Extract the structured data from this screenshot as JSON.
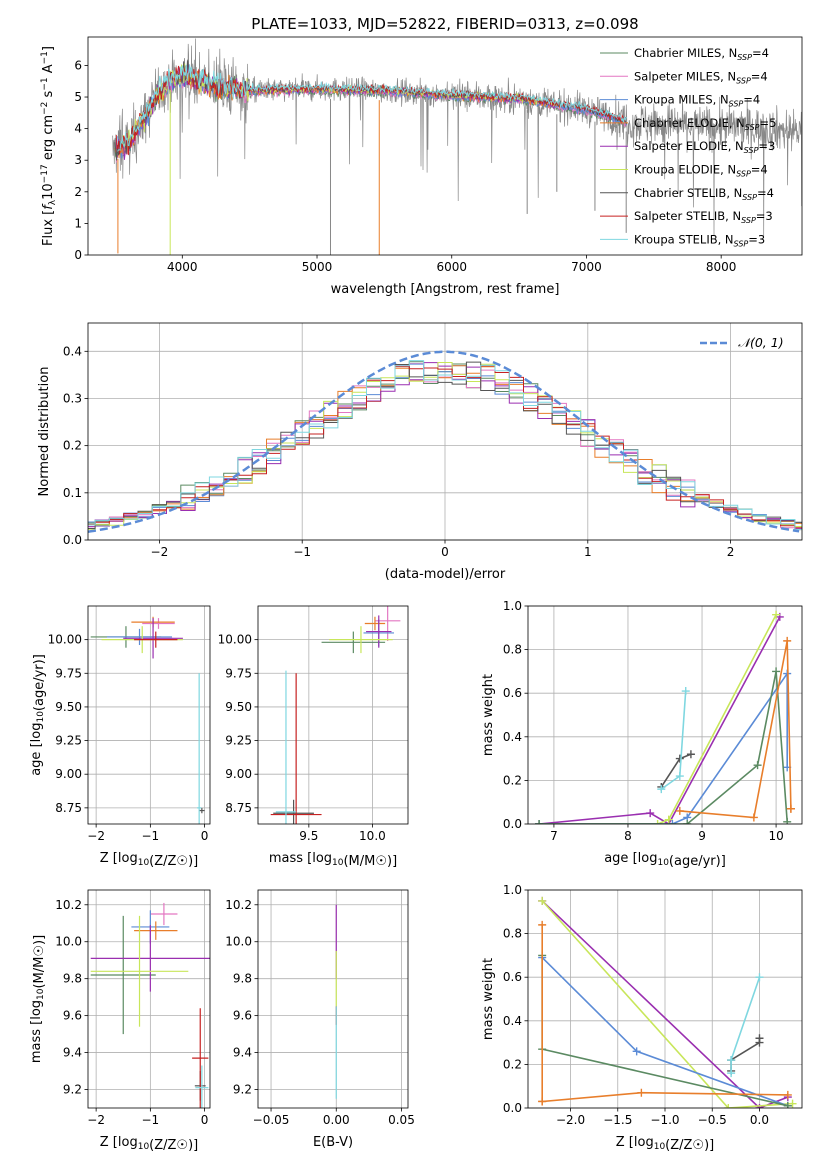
{
  "colors": {
    "chabrier_miles": "#5b8a62",
    "salpeter_miles": "#e377c2",
    "kroupa_miles": "#5b8bd6",
    "chabrier_elodie": "#e87e2b",
    "salpeter_elodie": "#9a2fb0",
    "kroupa_elodie": "#c8e65a",
    "chabrier_stelib": "#555555",
    "salpeter_stelib": "#c62121",
    "kroupa_stelib": "#7fd7e0",
    "data": "#888888",
    "normal": "#5b8bd6"
  },
  "chart_data": [
    {
      "id": "spectrum",
      "type": "line",
      "title": "PLATE=1033, MJD=52822, FIBERID=0313, z=0.098",
      "xlabel": "wavelength [Angstrom, rest frame]",
      "ylabel": "Flux [f_λ10^−17 erg cm^−2 s^−1 A^−1]",
      "xlim": [
        3300,
        8600
      ],
      "ylim": [
        0,
        6.9
      ],
      "xticks": [
        4000,
        5000,
        6000,
        7000,
        8000
      ],
      "yticks": [
        0,
        1,
        2,
        3,
        4,
        5,
        6
      ],
      "legend_position": "right",
      "legend": [
        {
          "base": "Chabrier MILES, N",
          "sub": "SSP",
          "tail": "=4",
          "color_key": "chabrier_miles"
        },
        {
          "base": "Salpeter MILES, N",
          "sub": "SSP",
          "tail": "=4",
          "color_key": "salpeter_miles"
        },
        {
          "base": "Kroupa MILES, N",
          "sub": "SSP",
          "tail": "=4",
          "color_key": "kroupa_miles"
        },
        {
          "base": "Chabrier ELODIE, N",
          "sub": "SSP",
          "tail": "=5",
          "color_key": "chabrier_elodie"
        },
        {
          "base": "Salpeter ELODIE, N",
          "sub": "SSP",
          "tail": "=3",
          "color_key": "salpeter_elodie"
        },
        {
          "base": "Kroupa ELODIE, N",
          "sub": "SSP",
          "tail": "=4",
          "color_key": "kroupa_elodie"
        },
        {
          "base": "Chabrier STELIB, N",
          "sub": "SSP",
          "tail": "=4",
          "color_key": "chabrier_stelib"
        },
        {
          "base": "Salpeter STELIB, N",
          "sub": "SSP",
          "tail": "=3",
          "color_key": "salpeter_stelib"
        },
        {
          "base": "Kroupa STELIB, N",
          "sub": "SSP",
          "tail": "=3",
          "color_key": "kroupa_stelib"
        }
      ],
      "continuum": {
        "x": [
          3500,
          3600,
          3700,
          3800,
          3900,
          4000,
          4200,
          4500,
          5000,
          5500,
          6000,
          6500,
          7000,
          7200,
          7300
        ],
        "y": [
          3.3,
          3.5,
          4.2,
          5.0,
          5.5,
          5.7,
          5.4,
          5.2,
          5.25,
          5.2,
          5.05,
          4.95,
          4.6,
          4.35,
          4.2
        ]
      },
      "data_x_range": [
        3480,
        8600
      ],
      "deep_lines": [
        {
          "x": 5100,
          "y": 0
        },
        {
          "x": 5462,
          "y": 0
        },
        {
          "x": 3522,
          "y": 0.05
        },
        {
          "x": 3910,
          "y": 0
        },
        {
          "x": 6560,
          "y": 1.3
        },
        {
          "x": 6780,
          "y": 2.0
        },
        {
          "x": 7063,
          "y": 1.4
        },
        {
          "x": 7295,
          "y": 0.7
        }
      ]
    },
    {
      "id": "residuals",
      "type": "step",
      "xlabel": "(data-model)/error",
      "ylabel": "Normed distribution",
      "xlim": [
        -2.5,
        2.5
      ],
      "ylim": [
        0,
        0.46
      ],
      "xticks": [
        -2,
        -1,
        0,
        1,
        2
      ],
      "yticks": [
        0.0,
        0.1,
        0.2,
        0.3,
        0.4
      ],
      "legend": "𝒩(0, 1)",
      "normal_mu": 0,
      "normal_sigma": 1,
      "bin_width": 0.1
    },
    {
      "id": "z-age",
      "type": "errorbar",
      "xlabel": "Z [log10(Z/Z☉)]",
      "ylabel": "age  [log10(age/yr)]",
      "xlim": [
        -2.15,
        0.1
      ],
      "ylim": [
        8.63,
        10.25
      ],
      "xticks": [
        -2,
        -1,
        0
      ],
      "yticks": [
        8.75,
        9.0,
        9.25,
        9.5,
        9.75,
        10.0
      ],
      "points": [
        {
          "c": "chabrier_miles",
          "x": -1.45,
          "y": 10.02,
          "xe": 0.65,
          "ye": 0.08
        },
        {
          "c": "salpeter_miles",
          "x": -0.85,
          "y": 10.12,
          "xe": 0.3,
          "ye": 0.04
        },
        {
          "c": "kroupa_miles",
          "x": -1.2,
          "y": 10.02,
          "xe": 0.6,
          "ye": 0.06
        },
        {
          "c": "chabrier_elodie",
          "x": -0.95,
          "y": 10.13,
          "xe": 0.4,
          "ye": 0.04
        },
        {
          "c": "salpeter_elodie",
          "x": -0.95,
          "y": 10.01,
          "xe": 0.55,
          "ye": 0.15
        },
        {
          "c": "kroupa_elodie",
          "x": -1.15,
          "y": 10.0,
          "xe": 0.75,
          "ye": 0.1
        },
        {
          "c": "chabrier_stelib",
          "x": -0.05,
          "y": 8.73,
          "xe": 0.05,
          "ye": 0.02
        },
        {
          "c": "salpeter_stelib",
          "x": -0.9,
          "y": 10.0,
          "xe": 0.4,
          "ye": 0.06
        },
        {
          "c": "kroupa_stelib",
          "x": -0.1,
          "y": 8.75,
          "xe": 0.04,
          "ye": 1.0
        }
      ]
    },
    {
      "id": "mass-age",
      "type": "errorbar",
      "xlabel": "mass [log10(M/M☉)]",
      "ylabel": "",
      "xlim": [
        9.1,
        10.28
      ],
      "ylim": [
        8.63,
        10.25
      ],
      "xticks": [
        9.5,
        10.0
      ],
      "yticks": [
        8.75,
        9.0,
        9.25,
        9.5,
        9.75,
        10.0
      ],
      "points": [
        {
          "c": "chabrier_miles",
          "x": 9.85,
          "y": 9.98,
          "xe": 0.25,
          "ye": 0.08
        },
        {
          "c": "salpeter_miles",
          "x": 10.12,
          "y": 10.14,
          "xe": 0.1,
          "ye": 0.15
        },
        {
          "c": "kroupa_miles",
          "x": 10.05,
          "y": 10.05,
          "xe": 0.12,
          "ye": 0.1
        },
        {
          "c": "chabrier_elodie",
          "x": 10.02,
          "y": 10.12,
          "xe": 0.08,
          "ye": 0.05
        },
        {
          "c": "salpeter_elodie",
          "x": 10.05,
          "y": 10.06,
          "xe": 0.1,
          "ye": 0.12
        },
        {
          "c": "kroupa_elodie",
          "x": 9.91,
          "y": 10.0,
          "xe": 0.25,
          "ye": 0.1
        },
        {
          "c": "chabrier_stelib",
          "x": 9.38,
          "y": 8.71,
          "xe": 0.16,
          "ye": 0.1
        },
        {
          "c": "salpeter_stelib",
          "x": 9.4,
          "y": 8.7,
          "xe": 0.2,
          "ye": 1.05
        },
        {
          "c": "kroupa_stelib",
          "x": 9.32,
          "y": 8.72,
          "xe": 0.08,
          "ye": 1.05
        }
      ]
    },
    {
      "id": "age-weight",
      "type": "line",
      "xlabel": "age  [log10(age/yr)]",
      "ylabel": "mass weight",
      "xlim": [
        6.65,
        10.35
      ],
      "ylim": [
        0,
        1.0
      ],
      "xticks": [
        7,
        8,
        9,
        10
      ],
      "yticks": [
        0.0,
        0.2,
        0.4,
        0.6,
        0.8,
        1.0
      ],
      "series": [
        {
          "c": "salpeter_elodie",
          "x": [
            6.8,
            8.3,
            8.55,
            10.05
          ],
          "y": [
            0.0,
            0.05,
            0.0,
            0.95
          ]
        },
        {
          "c": "kroupa_elodie",
          "x": [
            6.8,
            8.4,
            8.55,
            10.0
          ],
          "y": [
            0.0,
            0.0,
            0.02,
            0.96
          ]
        },
        {
          "c": "kroupa_miles",
          "x": [
            6.8,
            8.6,
            8.8,
            10.15,
            10.15
          ],
          "y": [
            0.0,
            0.0,
            0.03,
            0.69,
            0.26
          ]
        },
        {
          "c": "chabrier_miles",
          "x": [
            6.8,
            8.8,
            9.75,
            10.0,
            10.15
          ],
          "y": [
            0.0,
            0.0,
            0.27,
            0.7,
            0.01
          ]
        },
        {
          "c": "chabrier_elodie",
          "x": [
            8.7,
            9.7,
            10.15,
            10.2,
            10.2
          ],
          "y": [
            0.06,
            0.03,
            0.84,
            0.07,
            0.07
          ]
        },
        {
          "c": "chabrier_stelib",
          "x": [
            8.45,
            8.7,
            8.85
          ],
          "y": [
            0.17,
            0.3,
            0.32
          ]
        },
        {
          "c": "kroupa_stelib",
          "x": [
            8.45,
            8.7,
            8.78
          ],
          "y": [
            0.16,
            0.22,
            0.61
          ]
        }
      ]
    },
    {
      "id": "z-mass",
      "type": "errorbar",
      "xlabel": "Z [log10(Z/Z☉)]",
      "ylabel": "mass [log10(M/M☉)]",
      "xlim": [
        -2.15,
        0.1
      ],
      "ylim": [
        9.1,
        10.28
      ],
      "xticks": [
        -2,
        -1,
        0
      ],
      "yticks": [
        9.2,
        9.4,
        9.6,
        9.8,
        10.0,
        10.2
      ],
      "points": [
        {
          "c": "chabrier_miles",
          "x": -1.5,
          "y": 9.82,
          "xe": 0.6,
          "ye": 0.32
        },
        {
          "c": "salpeter_miles",
          "x": -0.75,
          "y": 10.15,
          "xe": 0.25,
          "ye": 0.06
        },
        {
          "c": "kroupa_miles",
          "x": -1.0,
          "y": 10.08,
          "xe": 0.35,
          "ye": 0.09
        },
        {
          "c": "chabrier_elodie",
          "x": -0.9,
          "y": 10.06,
          "xe": 0.4,
          "ye": 0.05
        },
        {
          "c": "salpeter_elodie",
          "x": -1.0,
          "y": 9.91,
          "xe": 1.1,
          "ye": 0.18
        },
        {
          "c": "kroupa_elodie",
          "x": -1.2,
          "y": 9.84,
          "xe": 0.9,
          "ye": 0.3
        },
        {
          "c": "chabrier_stelib",
          "x": -0.08,
          "y": 9.22,
          "xe": 0.1,
          "ye": 0.08
        },
        {
          "c": "salpeter_stelib",
          "x": -0.08,
          "y": 9.37,
          "xe": 0.15,
          "ye": 0.27
        },
        {
          "c": "kroupa_stelib",
          "x": -0.05,
          "y": 9.21,
          "xe": 0.12,
          "ye": 0.12
        }
      ]
    },
    {
      "id": "ebv-mass",
      "type": "errorbar",
      "xlabel": "E(B-V)",
      "ylabel": "",
      "xlim": [
        -0.06,
        0.055
      ],
      "ylim": [
        9.1,
        10.28
      ],
      "xticks": [
        -0.05,
        0.0,
        0.05
      ],
      "yticks": [
        9.2,
        9.4,
        9.6,
        9.8,
        10.0,
        10.2
      ],
      "points": [
        {
          "c": "salpeter_elodie",
          "x": 0.0,
          "y": 10.0,
          "xe": 0.0,
          "ye": 0.2
        },
        {
          "c": "kroupa_elodie",
          "x": 0.0,
          "y": 9.8,
          "xe": 0.0,
          "ye": 0.15
        },
        {
          "c": "salpeter_stelib",
          "x": 0.0,
          "y": 9.6,
          "xe": 0.0,
          "ye": 0.05
        },
        {
          "c": "kroupa_stelib",
          "x": 0.0,
          "y": 9.4,
          "xe": 0.0,
          "ye": 0.25
        }
      ]
    },
    {
      "id": "z-weight",
      "type": "line",
      "xlabel": "Z [log10(Z/Z☉)]",
      "ylabel": "mass weight",
      "xlim": [
        -2.45,
        0.45
      ],
      "ylim": [
        0,
        1.0
      ],
      "xticks": [
        -2.0,
        -1.5,
        -1.0,
        -0.5,
        0.0
      ],
      "yticks": [
        0.0,
        0.2,
        0.4,
        0.6,
        0.8,
        1.0
      ],
      "series": [
        {
          "c": "salpeter_elodie",
          "x": [
            -2.3,
            0.0,
            0.3
          ],
          "y": [
            0.95,
            0.0,
            0.05
          ]
        },
        {
          "c": "kroupa_elodie",
          "x": [
            -2.3,
            -0.33,
            0.35
          ],
          "y": [
            0.95,
            0.0,
            0.02
          ]
        },
        {
          "c": "kroupa_miles",
          "x": [
            -2.3,
            -1.3,
            0.3
          ],
          "y": [
            0.69,
            0.26,
            0.01
          ]
        },
        {
          "c": "chabrier_miles",
          "x": [
            -2.3,
            -2.3,
            0.3
          ],
          "y": [
            0.7,
            0.27,
            0.01
          ]
        },
        {
          "c": "chabrier_elodie",
          "x": [
            -2.3,
            -2.3,
            -2.3,
            -1.25,
            0.3
          ],
          "y": [
            0.84,
            0.03,
            0.03,
            0.07,
            0.06
          ]
        },
        {
          "c": "chabrier_stelib",
          "x": [
            -0.3,
            -0.3,
            0.0,
            0.0
          ],
          "y": [
            0.17,
            0.22,
            0.3,
            0.32
          ]
        },
        {
          "c": "kroupa_stelib",
          "x": [
            -0.3,
            -0.3,
            0.0
          ],
          "y": [
            0.16,
            0.22,
            0.6
          ]
        }
      ]
    }
  ]
}
